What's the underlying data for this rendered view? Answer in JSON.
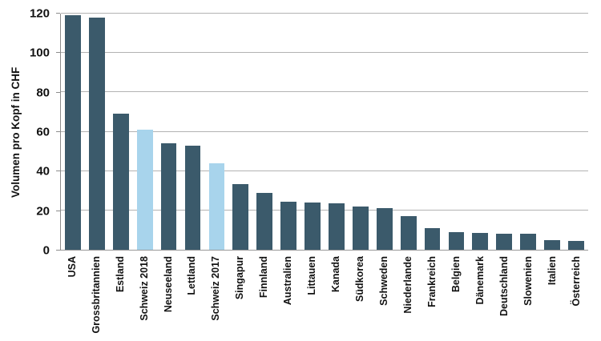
{
  "chart_data": {
    "type": "bar",
    "title": "",
    "xlabel": "",
    "ylabel": "Volumen pro Kopf in CHF",
    "ylim": [
      0,
      120
    ],
    "yticks": [
      0,
      20,
      40,
      60,
      80,
      100,
      120
    ],
    "grid": true,
    "legend": "none",
    "categories": [
      "USA",
      "Grossbritannien",
      "Estland",
      "Schweiz 2018",
      "Neuseeland",
      "Lettland",
      "Schweiz 2017",
      "Singapur",
      "Finnland",
      "Australien",
      "Littauen",
      "Kanada",
      "Südkorea",
      "Schweden",
      "Niederlande",
      "Frankreich",
      "Belgien",
      "Dänemark",
      "Deutschland",
      "Slowenien",
      "Italien",
      "Österreich"
    ],
    "values": [
      119,
      118,
      69,
      61,
      54,
      53,
      44,
      33.5,
      29,
      24.5,
      24,
      23.5,
      22,
      21,
      17,
      11,
      9,
      8.5,
      8,
      8,
      5,
      4.5
    ],
    "highlighted_categories": [
      "Schweiz 2018",
      "Schweiz 2017"
    ],
    "colors": {
      "bar_default": "#3B5A6B",
      "bar_highlight": "#A8D4EC",
      "gridline": "#b3b3b3",
      "axis": "#8c8c8c",
      "text": "#111111"
    }
  }
}
